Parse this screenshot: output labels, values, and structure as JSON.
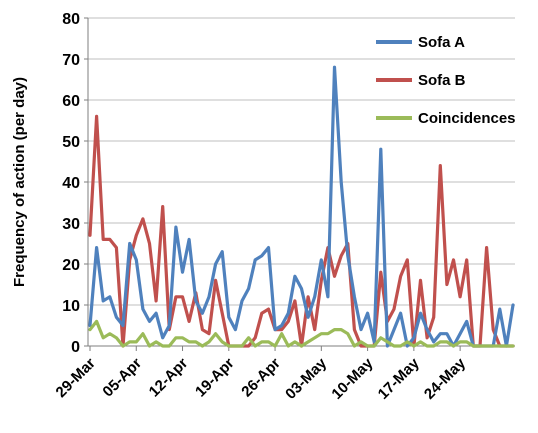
{
  "chart_data": {
    "type": "line",
    "title": "",
    "xlabel": "",
    "ylabel": "Frequency of action (per day)",
    "ylim": [
      0,
      80
    ],
    "yticks": [
      "0",
      "10",
      "20",
      "30",
      "40",
      "50",
      "60",
      "70",
      "80"
    ],
    "x_tick_labels": [
      "29-Mar",
      "05-Apr",
      "12-Apr",
      "19-Apr",
      "26-Apr",
      "03-May",
      "10-May",
      "17-May",
      "24-May"
    ],
    "x_start": "2011-03-29",
    "grid": true,
    "legend_position": "right",
    "series": [
      {
        "name": "Sofa A",
        "color": "#4F81BD",
        "values": [
          5,
          24,
          11,
          12,
          7,
          5,
          25,
          21,
          9,
          6,
          8,
          2,
          5,
          29,
          18,
          26,
          11,
          8,
          12,
          20,
          23,
          7,
          4,
          11,
          14,
          21,
          22,
          24,
          4,
          5,
          8,
          17,
          14,
          7,
          12,
          21,
          12,
          68,
          40,
          22,
          12,
          4,
          8,
          1,
          48,
          0,
          4,
          8,
          0,
          2,
          8,
          4,
          1,
          3,
          3,
          0,
          3,
          6,
          0,
          0,
          0,
          0,
          9,
          0,
          10
        ]
      },
      {
        "name": "Sofa B",
        "color": "#C0504D",
        "values": [
          27,
          56,
          26,
          26,
          24,
          0,
          21,
          27,
          31,
          25,
          11,
          34,
          4,
          12,
          12,
          6,
          13,
          4,
          3,
          16,
          8,
          0,
          0,
          0,
          0,
          2,
          8,
          9,
          4,
          4,
          6,
          11,
          0,
          12,
          4,
          16,
          24,
          17,
          22,
          25,
          4,
          0,
          0,
          0,
          18,
          6,
          9,
          17,
          21,
          0,
          16,
          2,
          7,
          44,
          15,
          21,
          12,
          21,
          0,
          0,
          24,
          4,
          0,
          0,
          0
        ]
      },
      {
        "name": "Coincidences",
        "color": "#9BBB59",
        "values": [
          4,
          6,
          2,
          3,
          2,
          0,
          1,
          1,
          3,
          0,
          1,
          0,
          0,
          2,
          2,
          1,
          1,
          0,
          1,
          3,
          1,
          0,
          0,
          0,
          2,
          0,
          1,
          1,
          0,
          3,
          0,
          1,
          0,
          1,
          2,
          3,
          3,
          4,
          4,
          3,
          0,
          1,
          0,
          0,
          2,
          1,
          0,
          0,
          1,
          0,
          1,
          0,
          0,
          1,
          1,
          0,
          1,
          1,
          0,
          0,
          0,
          0,
          0,
          0,
          0
        ]
      }
    ]
  }
}
